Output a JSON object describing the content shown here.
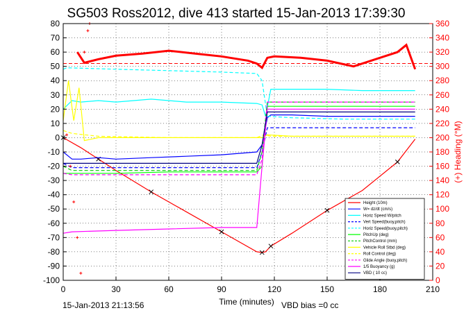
{
  "title": "SG503 Ross2012, dive 413 started 15-Jan-2013 17:39:30",
  "footer_left": "15-Jan-2013 21:13:56",
  "footer_right": "VBD bias =0 cc",
  "colors": {
    "height": "#ff0000",
    "w": "#0000ff",
    "horz_speed": "#00ffff",
    "vert_speed_buoy": "#0000ff",
    "pitch": "#00ff00",
    "pitch_control": "#00cc00",
    "roll": "#ffff00",
    "glide": "#ff00ff",
    "buoyancy": "#ff00ff",
    "vbd": "#000080",
    "heading": "#ff0000",
    "axis": "#000000"
  },
  "chart_data": {
    "type": "line",
    "title": "SG503 Ross2012, dive 413 started 15-Jan-2013 17:39:30",
    "xlabel": "Time (minutes)",
    "ylabel_left": "",
    "ylabel_right": "(+) Heading (°M)",
    "xlim": [
      0,
      210
    ],
    "ylim_left": [
      -100,
      80
    ],
    "ylim_right": [
      0,
      360
    ],
    "x_ticks": [
      0,
      30,
      60,
      90,
      120,
      150,
      180,
      210
    ],
    "y_ticks_left": [
      -100,
      -90,
      -80,
      -70,
      -60,
      -50,
      -40,
      -30,
      -20,
      -10,
      0,
      10,
      20,
      30,
      40,
      50,
      60,
      70,
      80
    ],
    "y_ticks_right": [
      0,
      20,
      40,
      60,
      80,
      100,
      120,
      140,
      160,
      180,
      200,
      220,
      240,
      260,
      280,
      300,
      320,
      340,
      360
    ],
    "grid": true,
    "legend_position": "bottom-right",
    "series": [
      {
        "name": "Height (10m)",
        "color": "#ff0000",
        "style": "solid",
        "x": [
          0,
          10,
          20,
          30,
          50,
          70,
          90,
          110,
          113,
          115,
          118,
          130,
          150,
          170,
          190,
          200
        ],
        "y": [
          0,
          -7,
          -15,
          -23,
          -38,
          -52,
          -66,
          -80,
          -80.5,
          -80,
          -76,
          -67,
          -51,
          -37,
          -17,
          -1
        ]
      },
      {
        "name": "W= dz/dt (cm/s)",
        "color": "#0000ff",
        "style": "solid",
        "x": [
          0,
          5,
          10,
          20,
          30,
          50,
          70,
          90,
          110,
          113,
          116,
          118,
          130,
          150,
          170,
          190,
          200
        ],
        "y": [
          -10,
          -15,
          -15,
          -14,
          -15,
          -14,
          -13,
          -12,
          -10,
          -5,
          14,
          16,
          16,
          15,
          15,
          15,
          15
        ]
      },
      {
        "name": "Horiz Speed W/pitch",
        "color": "#00ffff",
        "style": "solid",
        "x": [
          0,
          5,
          10,
          20,
          30,
          50,
          70,
          90,
          110,
          113,
          115,
          118,
          130,
          150,
          170,
          190,
          200
        ],
        "y": [
          20,
          26,
          25,
          26,
          25,
          27,
          25,
          25,
          24,
          23,
          15,
          34,
          34,
          34,
          33,
          33,
          33
        ]
      },
      {
        "name": "Vert Speed(buoy,pitch)",
        "color": "#0000ff",
        "style": "dashed",
        "x": [
          0,
          5,
          30,
          60,
          90,
          110,
          113,
          116,
          130,
          160,
          200
        ],
        "y": [
          -18,
          -21,
          -21,
          -21,
          -21,
          -21,
          -10,
          7,
          7,
          7,
          7
        ]
      },
      {
        "name": "Horiz Speed(buoy,pitch)",
        "color": "#00ffff",
        "style": "dashed",
        "x": [
          0,
          2,
          30,
          60,
          90,
          110,
          113,
          116,
          130,
          160,
          200
        ],
        "y": [
          48,
          49,
          48,
          47,
          46,
          45,
          40,
          15,
          14,
          13,
          13
        ]
      },
      {
        "name": "PitchUp (deg)",
        "color": "#00ff00",
        "style": "solid",
        "x": [
          0,
          5,
          30,
          60,
          90,
          110,
          113,
          116,
          130,
          160,
          200
        ],
        "y": [
          -25,
          -25,
          -25,
          -24,
          -24,
          -24,
          -20,
          22,
          22,
          22,
          22
        ]
      },
      {
        "name": "PitchControl (mm)",
        "color": "#00cc00",
        "style": "dashed",
        "x": [
          0,
          5,
          30,
          60,
          90,
          110,
          113,
          116,
          130,
          160,
          200
        ],
        "y": [
          -20,
          -23,
          -23,
          -23,
          -23,
          -23,
          -10,
          25,
          25,
          25,
          25
        ]
      },
      {
        "name": "Vehicle Roll Stbd (deg)",
        "color": "#ffff00",
        "style": "solid",
        "x": [
          0,
          3,
          6,
          9,
          12,
          20,
          30,
          60,
          90,
          110,
          113,
          116,
          130,
          160,
          190,
          200
        ],
        "y": [
          12,
          40,
          12,
          35,
          -2,
          0,
          0,
          0,
          0,
          0,
          0,
          2,
          1,
          1,
          1,
          1
        ]
      },
      {
        "name": "Roll Control (deg)",
        "color": "#ffff00",
        "style": "dashed",
        "x": [
          0,
          5,
          20,
          60,
          110,
          114,
          118,
          160,
          200
        ],
        "y": [
          5,
          3,
          1,
          0,
          0,
          2,
          1,
          1,
          1
        ]
      },
      {
        "name": "Glide Angle (buoy,pitch)",
        "color": "#ff00ff",
        "style": "dashed",
        "x": [
          0,
          5,
          30,
          60,
          90,
          110,
          113,
          116,
          130,
          160,
          200
        ],
        "y": [
          -25,
          -26,
          -26,
          -26,
          -26,
          -26,
          -15,
          25,
          25,
          25,
          25
        ]
      },
      {
        "name": "1/5 Buoyancy (g)",
        "color": "#ff00ff",
        "style": "solid",
        "x": [
          0,
          5,
          30,
          60,
          90,
          110,
          113,
          116,
          130,
          160,
          200
        ],
        "y": [
          -67,
          -66,
          -65,
          -64,
          -63,
          -63,
          -20,
          20,
          20,
          20,
          20
        ]
      },
      {
        "name": "VBD ( 10 cc)",
        "color": "#000080",
        "style": "solid",
        "x": [
          0,
          5,
          30,
          60,
          90,
          110,
          113,
          116,
          130,
          160,
          200
        ],
        "y": [
          -18,
          -18,
          -18,
          -18,
          -18,
          -18,
          -5,
          18,
          18,
          18,
          18
        ]
      }
    ],
    "heading_series": {
      "name": "Heading",
      "color": "#ff0000",
      "axis": "right",
      "x": [
        8,
        12,
        20,
        30,
        45,
        60,
        75,
        90,
        105,
        110,
        113,
        116,
        120,
        135,
        150,
        165,
        180,
        190,
        195,
        200
      ],
      "y": [
        320,
        305,
        310,
        315,
        318,
        322,
        318,
        314,
        308,
        304,
        298,
        312,
        314,
        312,
        308,
        300,
        312,
        320,
        330,
        296
      ]
    }
  }
}
